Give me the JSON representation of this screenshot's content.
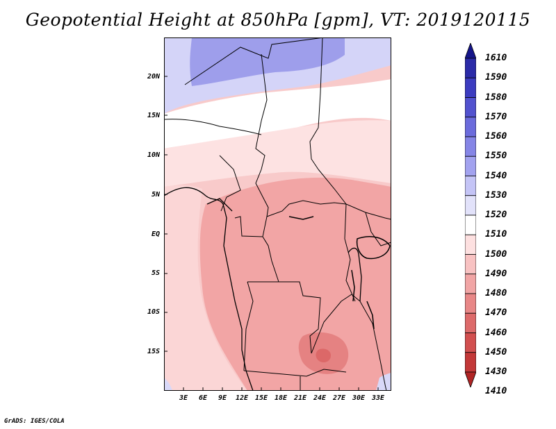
{
  "title": "Geopotential Height at 850hPa [gpm], VT: 2019120115",
  "y_ticks": [
    "20N",
    "15N",
    "10N",
    "5N",
    "EQ",
    "5S",
    "10S",
    "15S"
  ],
  "x_ticks": [
    "3E",
    "6E",
    "9E",
    "12E",
    "15E",
    "18E",
    "21E",
    "24E",
    "27E",
    "30E",
    "33E"
  ],
  "colorbar": {
    "labels": [
      "1610",
      "1590",
      "1580",
      "1570",
      "1560",
      "1550",
      "1540",
      "1530",
      "1520",
      "1510",
      "1500",
      "1490",
      "1480",
      "1470",
      "1460",
      "1450",
      "1430",
      "1410"
    ],
    "colors": [
      "#15158a",
      "#2b2ba8",
      "#3c3cc0",
      "#5252cf",
      "#6b6bdc",
      "#8585e6",
      "#a2a2ef",
      "#c4c4f6",
      "#e2e2fa",
      "#ffffff",
      "#fde0e0",
      "#f8c2c2",
      "#f1a5a5",
      "#e88787",
      "#dd6a6a",
      "#d24f4f",
      "#c33838",
      "#b02424"
    ]
  },
  "credit": "GrADS: IGES/COLA"
}
